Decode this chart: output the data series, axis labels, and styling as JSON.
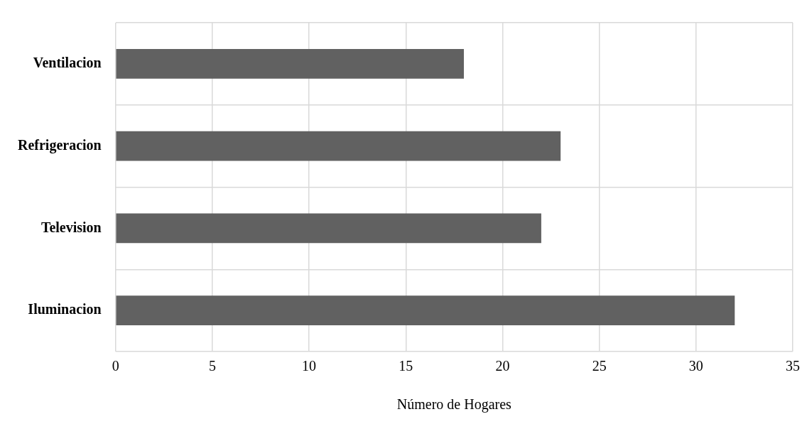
{
  "chart_data": {
    "type": "bar",
    "orientation": "horizontal",
    "xlabel": "Número de Hogares",
    "categories": [
      "Ventilacion",
      "Refrigeracion",
      "Television",
      "Iluminacion"
    ],
    "values": [
      18,
      23,
      22,
      32
    ],
    "color": "#616161",
    "xlim": [
      0,
      35
    ],
    "xticks": [
      0,
      5,
      10,
      15,
      20,
      25,
      30,
      35
    ],
    "grid": true
  }
}
